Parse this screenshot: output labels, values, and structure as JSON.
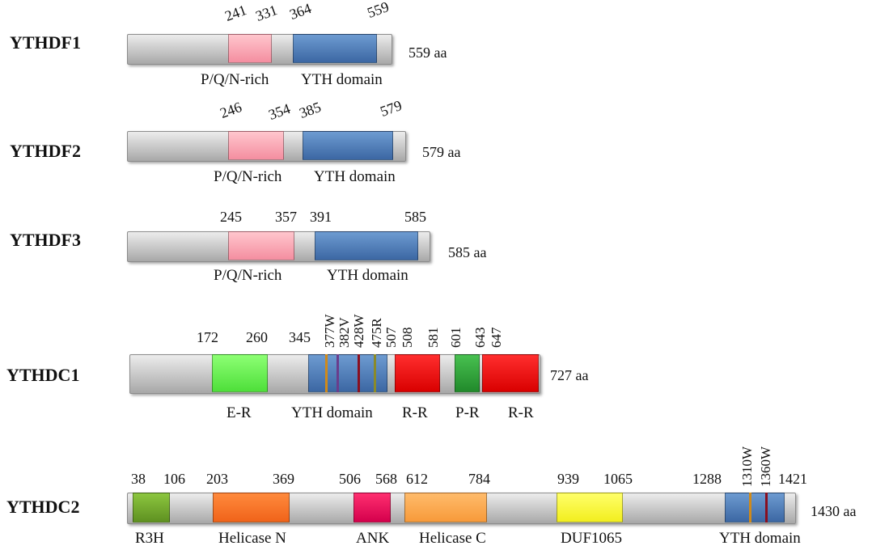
{
  "proteins": [
    {
      "name": "YTHDF1",
      "length": "559 aa",
      "positions": [
        "241",
        "331",
        "364",
        "559"
      ],
      "domains": [
        "P/Q/N-rich",
        "YTH domain"
      ]
    },
    {
      "name": "YTHDF2",
      "length": "579 aa",
      "positions": [
        "246",
        "354",
        "385",
        "579"
      ],
      "domains": [
        "P/Q/N-rich",
        "YTH domain"
      ]
    },
    {
      "name": "YTHDF3",
      "length": "585 aa",
      "positions": [
        "245",
        "357",
        "391",
        "585"
      ],
      "domains": [
        "P/Q/N-rich",
        "YTH domain"
      ]
    },
    {
      "name": "YTHDC1",
      "length": "727 aa",
      "positions": [
        "172",
        "260",
        "345",
        "507",
        "508",
        "581",
        "601",
        "643",
        "647"
      ],
      "mutations": [
        "377W",
        "382V",
        "428W",
        "475R"
      ],
      "domains": [
        "E-R",
        "YTH domain",
        "R-R",
        "P-R",
        "R-R"
      ]
    },
    {
      "name": "YTHDC2",
      "length": "1430 aa",
      "positions": [
        "38",
        "106",
        "203",
        "369",
        "506",
        "568",
        "612",
        "784",
        "939",
        "1065",
        "1288",
        "1421"
      ],
      "mutations": [
        "1310W",
        "1360W"
      ],
      "domains": [
        "R3H",
        "Helicase N",
        "ANK",
        "Helicase C",
        "DUF1065",
        "YTH domain"
      ]
    }
  ],
  "colors": {
    "pqn_rich": "#f7a3b0",
    "yth_domain": "#4a76b3",
    "e_r": "#66ff55",
    "r_r": "#ee1111",
    "p_r": "#2ea83a",
    "r3h": "#76ad2f",
    "helicase_n": "#f5782a",
    "ank": "#e8145c",
    "helicase_c": "#fbaa55",
    "duf1065": "#f8f540",
    "mutation_orange": "#d08a1a",
    "mutation_purple": "#6a3d8c",
    "mutation_darkred": "#8a0f1f",
    "mutation_olive": "#8a8a2a"
  }
}
